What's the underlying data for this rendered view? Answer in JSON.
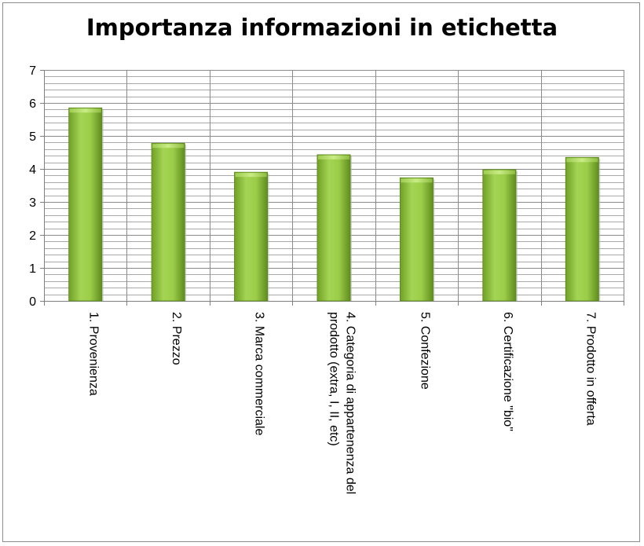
{
  "chart_data": {
    "type": "bar",
    "title": "Importanza informazioni in etichetta",
    "xlabel": "",
    "ylabel": "",
    "ylim": [
      0,
      7
    ],
    "yticks": [
      0,
      1,
      2,
      3,
      4,
      5,
      6,
      7
    ],
    "categories": [
      [
        "1. Provenienza"
      ],
      [
        "2. Prezzo"
      ],
      [
        "3. Marca commerciale"
      ],
      [
        "4. Categoria di appartenenza del",
        "prodotto (extra, I, II, etc)"
      ],
      [
        "5. Confezione"
      ],
      [
        "6. Certificazione \"bio\""
      ],
      [
        "7. Prodotto in offerta"
      ]
    ],
    "values": [
      5.85,
      4.78,
      3.9,
      4.43,
      3.73,
      3.98,
      4.35
    ],
    "grid": true,
    "bar_color": "#8fc63a",
    "legend": "none"
  }
}
